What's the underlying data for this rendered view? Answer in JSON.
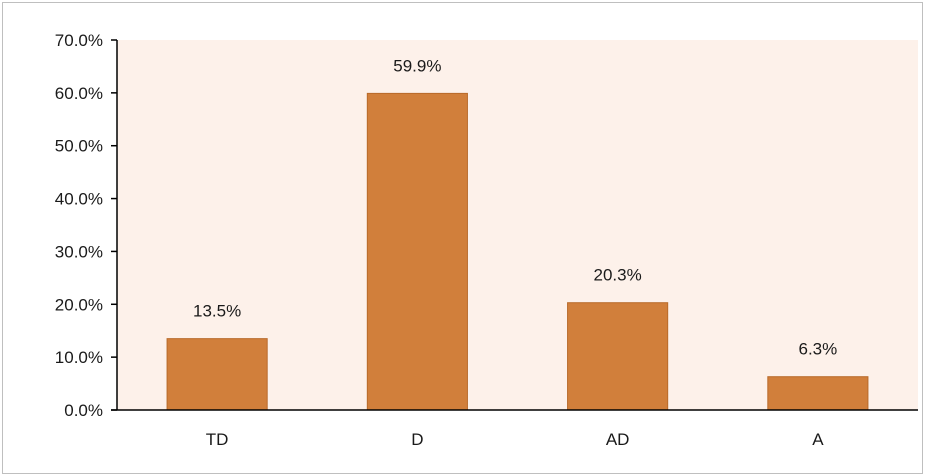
{
  "chart_data": {
    "type": "bar",
    "title": "",
    "xlabel": "",
    "ylabel": "",
    "categories": [
      "TD",
      "D",
      "AD",
      "A"
    ],
    "values": [
      13.5,
      59.9,
      20.3,
      6.3
    ],
    "data_labels": [
      "13.5%",
      "59.9%",
      "20.3%",
      "6.3%"
    ],
    "ylim": [
      0,
      70
    ],
    "y_ticks": [
      0,
      10,
      20,
      30,
      40,
      50,
      60,
      70
    ],
    "y_tick_labels": [
      "0.0%",
      "10.0%",
      "20.0%",
      "30.0%",
      "40.0%",
      "50.0%",
      "60.0%",
      "70.0%"
    ],
    "grid": false,
    "legend": "none",
    "colors": {
      "bar": "#d17f3b",
      "bar_edge": "#b86a2a",
      "plot_background": "#fdf1ea",
      "axis": "#000000"
    }
  }
}
